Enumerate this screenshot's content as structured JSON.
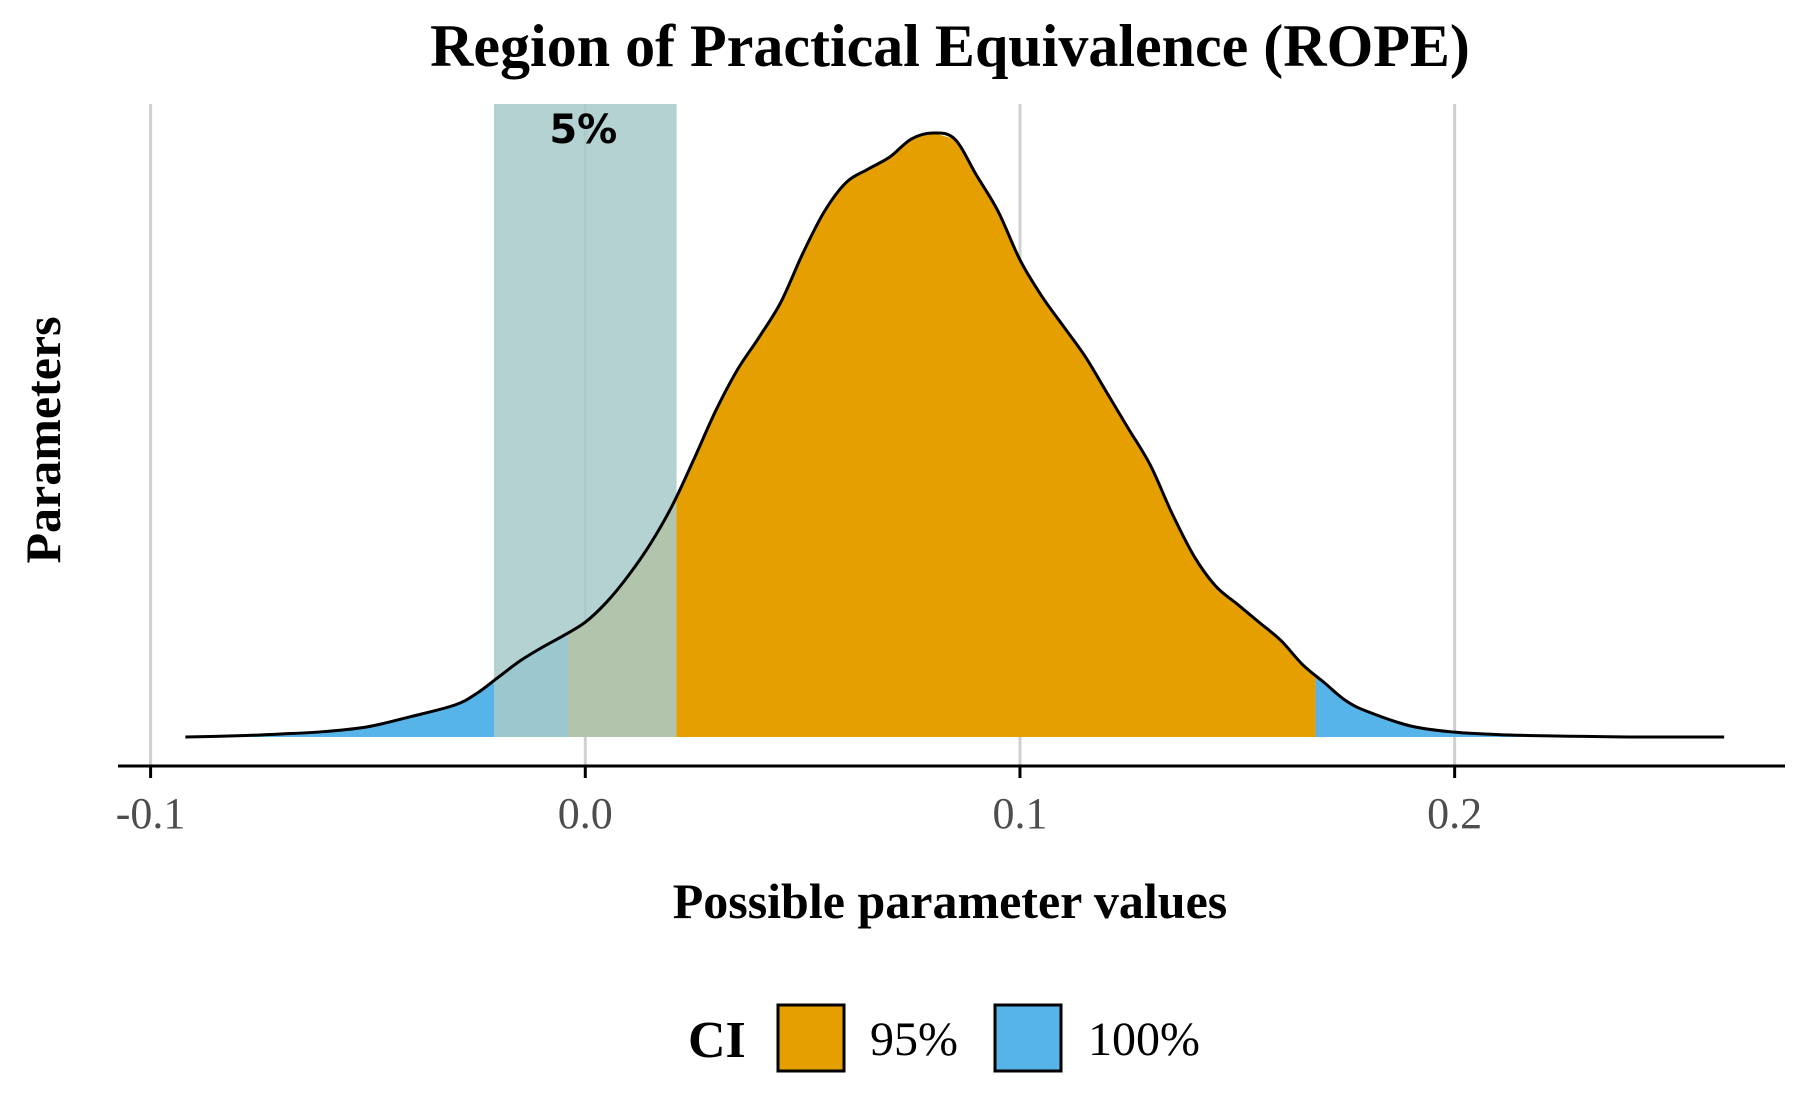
{
  "chart_data": {
    "type": "area",
    "title": "Region of Practical Equivalence (ROPE)",
    "xlabel": "Possible parameter values",
    "ylabel": "Parameters",
    "xlim": [
      -0.1,
      0.26
    ],
    "ylim": [
      0,
      1
    ],
    "x_ticks": [
      -0.1,
      0.0,
      0.1,
      0.2
    ],
    "x_tick_labels": [
      "-0.1",
      "0.0",
      "0.1",
      "0.2"
    ],
    "grid": "vertical-major",
    "rope": {
      "low": -0.021,
      "high": 0.021,
      "label": "5%",
      "color": "#a7caca"
    },
    "ci_95": {
      "low": -0.004,
      "high": 0.168
    },
    "legend": {
      "title": "CI",
      "placement": "bottom",
      "entries": [
        {
          "label": "95%",
          "color": "#E69F00"
        },
        {
          "label": "100%",
          "color": "#56B4E9"
        }
      ]
    },
    "density": {
      "x": [
        -0.092,
        -0.08,
        -0.07,
        -0.06,
        -0.05,
        -0.04,
        -0.03,
        -0.025,
        -0.02,
        -0.015,
        -0.01,
        -0.005,
        0.0,
        0.005,
        0.01,
        0.015,
        0.02,
        0.025,
        0.03,
        0.035,
        0.04,
        0.045,
        0.05,
        0.055,
        0.06,
        0.065,
        0.07,
        0.075,
        0.08,
        0.085,
        0.09,
        0.095,
        0.1,
        0.105,
        0.11,
        0.115,
        0.12,
        0.125,
        0.13,
        0.135,
        0.14,
        0.145,
        0.15,
        0.155,
        0.16,
        0.165,
        0.17,
        0.175,
        0.18,
        0.19,
        0.2,
        0.21,
        0.22,
        0.23,
        0.24,
        0.25,
        0.262
      ],
      "y": [
        0.0,
        0.002,
        0.005,
        0.009,
        0.017,
        0.034,
        0.053,
        0.072,
        0.099,
        0.126,
        0.148,
        0.168,
        0.19,
        0.224,
        0.268,
        0.32,
        0.383,
        0.46,
        0.54,
        0.608,
        0.662,
        0.72,
        0.8,
        0.87,
        0.918,
        0.94,
        0.96,
        0.99,
        1.0,
        0.99,
        0.93,
        0.87,
        0.79,
        0.73,
        0.68,
        0.63,
        0.57,
        0.51,
        0.45,
        0.37,
        0.3,
        0.25,
        0.22,
        0.19,
        0.16,
        0.12,
        0.09,
        0.06,
        0.042,
        0.018,
        0.008,
        0.004,
        0.002,
        0.001,
        0.0,
        0.0,
        0.0
      ]
    }
  }
}
